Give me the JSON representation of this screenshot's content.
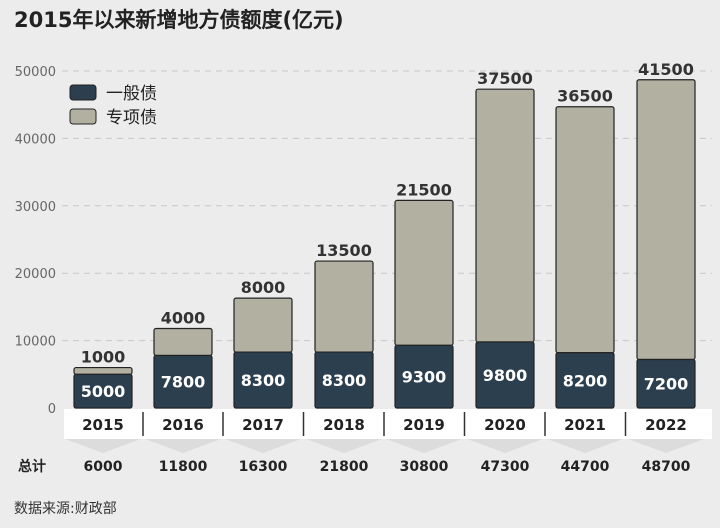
{
  "title": "2015年以来新增地方债额度(亿元)",
  "source": "数据来源:财政部",
  "totals_label": "总计",
  "colors": {
    "general": "#2b3f4f",
    "special": "#b1b0a1",
    "outline": "#222222"
  },
  "chart_data": {
    "type": "bar",
    "stacked": true,
    "title": "2015年以来新增地方债额度(亿元)",
    "categories": [
      "2015",
      "2016",
      "2017",
      "2018",
      "2019",
      "2020",
      "2021",
      "2022"
    ],
    "series": [
      {
        "name": "一般债",
        "values": [
          5000,
          7800,
          8300,
          8300,
          9300,
          9800,
          8200,
          7200
        ]
      },
      {
        "name": "专项债",
        "values": [
          1000,
          4000,
          8000,
          13500,
          21500,
          37500,
          36500,
          41500
        ]
      }
    ],
    "totals": [
      6000,
      11800,
      16300,
      21800,
      30800,
      47300,
      44700,
      48700
    ],
    "ylim": [
      0,
      50000
    ],
    "yticks": [
      0,
      10000,
      20000,
      30000,
      40000,
      50000
    ],
    "grid": true,
    "legend": "top-left"
  }
}
